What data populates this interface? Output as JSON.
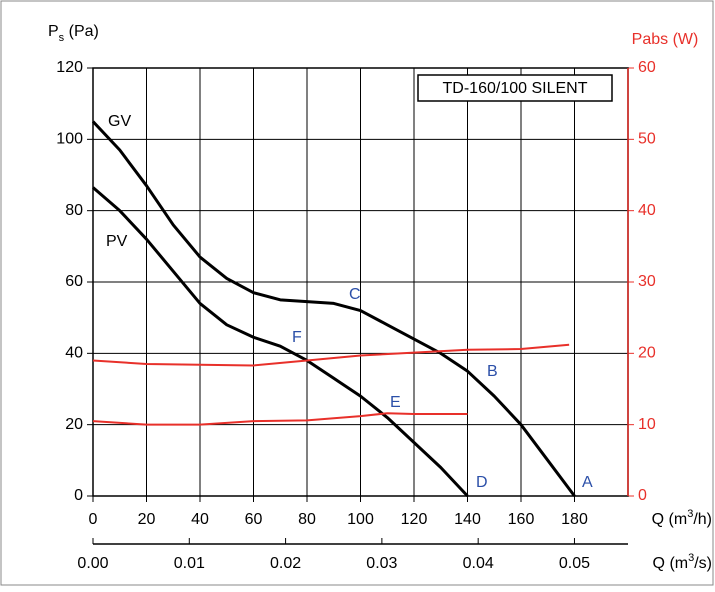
{
  "chart_data": {
    "type": "line",
    "title": "TD-160/100 SILENT",
    "ylabel_parts": [
      "P",
      "s",
      " (Pa)"
    ],
    "y2label": "Pabs (W)",
    "xlabel_parts": [
      "Q (m",
      "3",
      "/h)"
    ],
    "x2label_parts": [
      "Q (m",
      "3",
      "/s)"
    ],
    "xlim": [
      0,
      200
    ],
    "xticks": [
      0,
      20,
      40,
      60,
      80,
      100,
      120,
      140,
      160,
      180
    ],
    "x2lim": [
      0,
      0.05556
    ],
    "x2ticks": [
      {
        "value": 0,
        "label": "0.00"
      },
      0.01,
      0.02,
      0.03,
      0.04,
      0.05
    ],
    "ylim": [
      0,
      120
    ],
    "yticks": [
      0,
      20,
      40,
      60,
      80,
      100,
      120
    ],
    "y2lim": [
      0,
      60
    ],
    "y2ticks": [
      0,
      10,
      20,
      30,
      40,
      50,
      60
    ],
    "grid": true,
    "series": [
      {
        "name": "GV",
        "color": "#000000",
        "x": [
          0,
          10,
          20,
          30,
          40,
          50,
          60,
          70,
          80,
          90,
          100,
          110,
          120,
          130,
          140,
          150,
          160,
          170,
          180
        ],
        "values": [
          105,
          97,
          87,
          76,
          67,
          61,
          57,
          55,
          54.5,
          54,
          52,
          48,
          44,
          40,
          35,
          28,
          20,
          10,
          0
        ]
      },
      {
        "name": "PV",
        "color": "#000000",
        "x": [
          0,
          10,
          20,
          30,
          40,
          50,
          60,
          70,
          80,
          90,
          100,
          110,
          120,
          130,
          140
        ],
        "values": [
          86.5,
          80,
          72,
          63,
          54,
          48,
          44.5,
          42,
          38,
          33,
          28,
          22,
          15,
          8,
          0
        ]
      },
      {
        "color": "#e8302a",
        "axis": "y2",
        "x": [
          0,
          20,
          40,
          60,
          80,
          100,
          120,
          140,
          160,
          178
        ],
        "values": [
          19,
          18.5,
          18.4,
          18.3,
          19,
          19.7,
          20.1,
          20.5,
          20.6,
          21.2
        ]
      },
      {
        "color": "#e8302a",
        "axis": "y2",
        "x": [
          0,
          20,
          40,
          60,
          80,
          100,
          110,
          120,
          140
        ],
        "values": [
          10.5,
          10,
          10,
          10.5,
          10.6,
          11.2,
          11.6,
          11.5,
          11.5
        ]
      }
    ],
    "annotations": [
      "A",
      "B",
      "C",
      "D",
      "E",
      "F"
    ]
  }
}
